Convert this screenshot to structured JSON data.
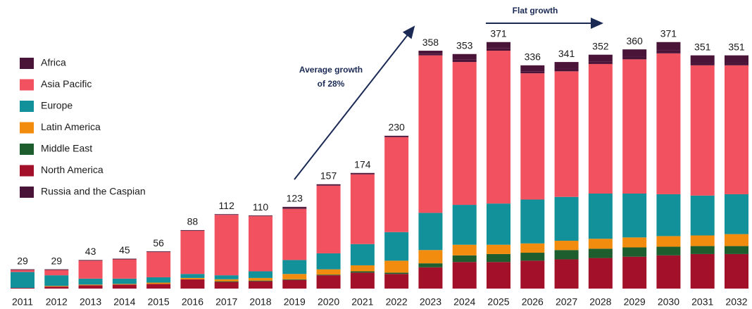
{
  "chart_data": {
    "type": "stacked_bar",
    "categories": [
      "2011",
      "2012",
      "2013",
      "2014",
      "2015",
      "2016",
      "2017",
      "2018",
      "2019",
      "2020",
      "2021",
      "2022",
      "2023",
      "2024",
      "2025",
      "2026",
      "2027",
      "2028",
      "2029",
      "2030",
      "2031",
      "2032"
    ],
    "totals": [
      29,
      29,
      43,
      45,
      56,
      88,
      112,
      110,
      123,
      157,
      174,
      230,
      358,
      353,
      371,
      336,
      341,
      352,
      360,
      371,
      351,
      351
    ],
    "series": [
      {
        "name": "Africa",
        "color": "#4a1438",
        "values": [
          1,
          1,
          1,
          1,
          1,
          1,
          1,
          1,
          2,
          2,
          2,
          2,
          5,
          8,
          9,
          9,
          10,
          10,
          11,
          12,
          11,
          11
        ]
      },
      {
        "name": "Asia Pacific",
        "color": "#f2525f",
        "values": [
          3,
          8,
          27,
          29,
          38,
          65,
          91,
          83,
          77,
          102,
          105,
          143,
          237,
          215,
          230,
          190,
          189,
          195,
          202,
          212,
          196,
          194
        ]
      },
      {
        "name": "Europe",
        "color": "#12919a",
        "values": [
          24,
          16,
          9,
          8,
          8,
          6,
          6,
          10,
          21,
          24,
          32,
          43,
          56,
          60,
          62,
          66,
          66,
          68,
          66,
          63,
          60,
          60
        ]
      },
      {
        "name": "Latin America",
        "color": "#f28c0f",
        "values": [
          0,
          1,
          1,
          1,
          2,
          2,
          3,
          4,
          8,
          8,
          9,
          18,
          20,
          16,
          14,
          14,
          14,
          15,
          15,
          16,
          16,
          18
        ]
      },
      {
        "name": "Middle East",
        "color": "#1e5e2e",
        "values": [
          0,
          0,
          0,
          0,
          0,
          0,
          1,
          1,
          1,
          1,
          2,
          2,
          6,
          10,
          12,
          12,
          14,
          14,
          14,
          13,
          12,
          12
        ]
      },
      {
        "name": "North America",
        "color": "#a3102a",
        "values": [
          1,
          3,
          5,
          6,
          7,
          14,
          10,
          11,
          13,
          20,
          24,
          22,
          32,
          40,
          40,
          42,
          44,
          46,
          48,
          50,
          52,
          52
        ]
      },
      {
        "name": "Russia and the Caspian",
        "color": "#4a1438",
        "values": [
          0,
          0,
          0,
          0,
          0,
          0,
          0,
          0,
          1,
          0,
          0,
          0,
          2,
          4,
          4,
          3,
          4,
          4,
          4,
          5,
          4,
          4
        ]
      }
    ],
    "annotations": [
      "Average growth",
      "of 28%",
      "Flat growth"
    ]
  }
}
